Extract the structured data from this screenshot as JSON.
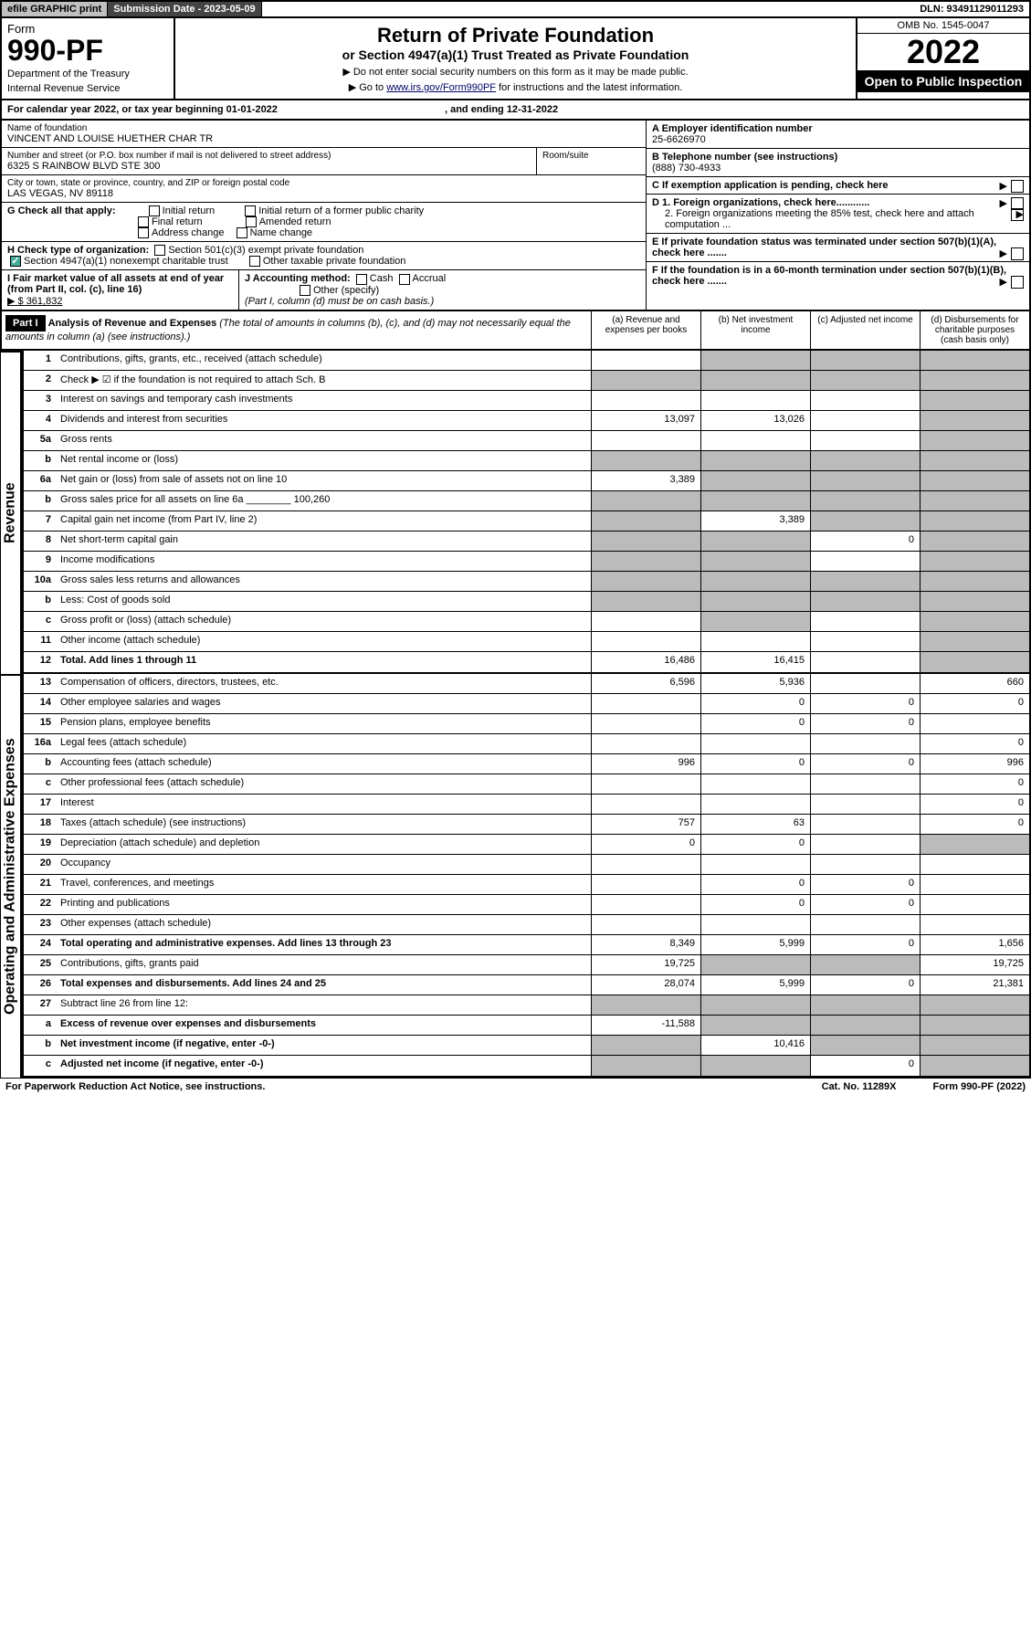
{
  "top": {
    "efile": "efile GRAPHIC print",
    "subdate_lbl": "Submission Date - 2023-05-09",
    "dln": "DLN: 93491129011293"
  },
  "hdr": {
    "form": "Form",
    "no": "990-PF",
    "dept": "Department of the Treasury",
    "irs": "Internal Revenue Service",
    "title": "Return of Private Foundation",
    "sub": "or Section 4947(a)(1) Trust Treated as Private Foundation",
    "note1": "▶ Do not enter social security numbers on this form as it may be made public.",
    "note2_a": "▶ Go to ",
    "note2_link": "www.irs.gov/Form990PF",
    "note2_b": " for instructions and the latest information.",
    "omb": "OMB No. 1545-0047",
    "year": "2022",
    "open": "Open to Public Inspection"
  },
  "cal": {
    "text_a": "For calendar year 2022, or tax year beginning 01-01-2022",
    "text_b": ", and ending 12-31-2022"
  },
  "info": {
    "name_lbl": "Name of foundation",
    "name": "VINCENT AND LOUISE HUETHER CHAR TR",
    "addr_lbl": "Number and street (or P.O. box number if mail is not delivered to street address)",
    "addr": "6325 S RAINBOW BLVD STE 300",
    "room_lbl": "Room/suite",
    "city_lbl": "City or town, state or province, country, and ZIP or foreign postal code",
    "city": "LAS VEGAS, NV  89118",
    "a_lbl": "A Employer identification number",
    "a_val": "25-6626970",
    "b_lbl": "B Telephone number (see instructions)",
    "b_val": "(888) 730-4933",
    "c_lbl": "C If exemption application is pending, check here",
    "g_lbl": "G Check all that apply:",
    "g_opts": [
      "Initial return",
      "Final return",
      "Address change",
      "Initial return of a former public charity",
      "Amended return",
      "Name change"
    ],
    "d1": "D 1. Foreign organizations, check here............",
    "d2": "2. Foreign organizations meeting the 85% test, check here and attach computation ...",
    "h_lbl": "H Check type of organization:",
    "h1": "Section 501(c)(3) exempt private foundation",
    "h2": "Section 4947(a)(1) nonexempt charitable trust",
    "h3": "Other taxable private foundation",
    "e_lbl": "E If private foundation status was terminated under section 507(b)(1)(A), check here .......",
    "i_lbl": "I Fair market value of all assets at end of year (from Part II, col. (c), line 16)",
    "i_val": "▶ $  361,832",
    "j_lbl": "J Accounting method:",
    "j_cash": "Cash",
    "j_acc": "Accrual",
    "j_other": "Other (specify)",
    "j_note": "(Part I, column (d) must be on cash basis.)",
    "f_lbl": "F If the foundation is in a 60-month termination under section 507(b)(1)(B), check here ......."
  },
  "part1": {
    "hdr": "Part I",
    "title": "Analysis of Revenue and Expenses",
    "note": "(The total of amounts in columns (b), (c), and (d) may not necessarily equal the amounts in column (a) (see instructions).)",
    "cols": [
      "(a)  Revenue and expenses per books",
      "(b)  Net investment income",
      "(c)  Adjusted net income",
      "(d)  Disbursements for charitable purposes (cash basis only)"
    ]
  },
  "side": {
    "rev": "Revenue",
    "exp": "Operating and Administrative Expenses"
  },
  "rows": [
    {
      "n": "1",
      "d": "Contributions, gifts, grants, etc., received (attach schedule)",
      "a": "",
      "b": "g",
      "c": "g",
      "dd": "g"
    },
    {
      "n": "2",
      "d": "Check ▶ ☑ if the foundation is not required to attach Sch. B",
      "a": "g",
      "b": "g",
      "c": "g",
      "dd": "g",
      "desc_bold_parts": true
    },
    {
      "n": "3",
      "d": "Interest on savings and temporary cash investments",
      "a": "",
      "b": "",
      "c": "",
      "dd": "g"
    },
    {
      "n": "4",
      "d": "Dividends and interest from securities",
      "a": "13,097",
      "b": "13,026",
      "c": "",
      "dd": "g"
    },
    {
      "n": "5a",
      "d": "Gross rents",
      "a": "",
      "b": "",
      "c": "",
      "dd": "g"
    },
    {
      "n": "b",
      "d": "Net rental income or (loss)",
      "a": "g",
      "b": "g",
      "c": "g",
      "dd": "g"
    },
    {
      "n": "6a",
      "d": "Net gain or (loss) from sale of assets not on line 10",
      "a": "3,389",
      "b": "g",
      "c": "g",
      "dd": "g"
    },
    {
      "n": "b",
      "d": "Gross sales price for all assets on line 6a ________ 100,260",
      "a": "g",
      "b": "g",
      "c": "g",
      "dd": "g"
    },
    {
      "n": "7",
      "d": "Capital gain net income (from Part IV, line 2)",
      "a": "g",
      "b": "3,389",
      "c": "g",
      "dd": "g"
    },
    {
      "n": "8",
      "d": "Net short-term capital gain",
      "a": "g",
      "b": "g",
      "c": "0",
      "dd": "g"
    },
    {
      "n": "9",
      "d": "Income modifications",
      "a": "g",
      "b": "g",
      "c": "",
      "dd": "g"
    },
    {
      "n": "10a",
      "d": "Gross sales less returns and allowances",
      "a": "g",
      "b": "g",
      "c": "g",
      "dd": "g"
    },
    {
      "n": "b",
      "d": "Less: Cost of goods sold",
      "a": "g",
      "b": "g",
      "c": "g",
      "dd": "g"
    },
    {
      "n": "c",
      "d": "Gross profit or (loss) (attach schedule)",
      "a": "",
      "b": "g",
      "c": "",
      "dd": "g"
    },
    {
      "n": "11",
      "d": "Other income (attach schedule)",
      "a": "",
      "b": "",
      "c": "",
      "dd": "g"
    },
    {
      "n": "12",
      "d": "Total. Add lines 1 through 11",
      "a": "16,486",
      "b": "16,415",
      "c": "",
      "dd": "g",
      "bold": true
    }
  ],
  "erows": [
    {
      "n": "13",
      "d": "Compensation of officers, directors, trustees, etc.",
      "a": "6,596",
      "b": "5,936",
      "c": "",
      "dd": "660"
    },
    {
      "n": "14",
      "d": "Other employee salaries and wages",
      "a": "",
      "b": "0",
      "c": "0",
      "dd": "0"
    },
    {
      "n": "15",
      "d": "Pension plans, employee benefits",
      "a": "",
      "b": "0",
      "c": "0",
      "dd": ""
    },
    {
      "n": "16a",
      "d": "Legal fees (attach schedule)",
      "a": "",
      "b": "",
      "c": "",
      "dd": "0"
    },
    {
      "n": "b",
      "d": "Accounting fees (attach schedule)",
      "a": "996",
      "b": "0",
      "c": "0",
      "dd": "996"
    },
    {
      "n": "c",
      "d": "Other professional fees (attach schedule)",
      "a": "",
      "b": "",
      "c": "",
      "dd": "0"
    },
    {
      "n": "17",
      "d": "Interest",
      "a": "",
      "b": "",
      "c": "",
      "dd": "0"
    },
    {
      "n": "18",
      "d": "Taxes (attach schedule) (see instructions)",
      "a": "757",
      "b": "63",
      "c": "",
      "dd": "0"
    },
    {
      "n": "19",
      "d": "Depreciation (attach schedule) and depletion",
      "a": "0",
      "b": "0",
      "c": "",
      "dd": "g"
    },
    {
      "n": "20",
      "d": "Occupancy",
      "a": "",
      "b": "",
      "c": "",
      "dd": ""
    },
    {
      "n": "21",
      "d": "Travel, conferences, and meetings",
      "a": "",
      "b": "0",
      "c": "0",
      "dd": ""
    },
    {
      "n": "22",
      "d": "Printing and publications",
      "a": "",
      "b": "0",
      "c": "0",
      "dd": ""
    },
    {
      "n": "23",
      "d": "Other expenses (attach schedule)",
      "a": "",
      "b": "",
      "c": "",
      "dd": ""
    },
    {
      "n": "24",
      "d": "Total operating and administrative expenses. Add lines 13 through 23",
      "a": "8,349",
      "b": "5,999",
      "c": "0",
      "dd": "1,656",
      "bold": true
    },
    {
      "n": "25",
      "d": "Contributions, gifts, grants paid",
      "a": "19,725",
      "b": "g",
      "c": "g",
      "dd": "19,725"
    },
    {
      "n": "26",
      "d": "Total expenses and disbursements. Add lines 24 and 25",
      "a": "28,074",
      "b": "5,999",
      "c": "0",
      "dd": "21,381",
      "bold": true
    },
    {
      "n": "27",
      "d": "Subtract line 26 from line 12:",
      "a": "g",
      "b": "g",
      "c": "g",
      "dd": "g"
    },
    {
      "n": "a",
      "d": "Excess of revenue over expenses and disbursements",
      "a": "-11,588",
      "b": "g",
      "c": "g",
      "dd": "g",
      "bold": true
    },
    {
      "n": "b",
      "d": "Net investment income (if negative, enter -0-)",
      "a": "g",
      "b": "10,416",
      "c": "g",
      "dd": "g",
      "bold": true
    },
    {
      "n": "c",
      "d": "Adjusted net income (if negative, enter -0-)",
      "a": "g",
      "b": "g",
      "c": "0",
      "dd": "g",
      "bold": true
    }
  ],
  "footer": {
    "l": "For Paperwork Reduction Act Notice, see instructions.",
    "m": "Cat. No. 11289X",
    "r": "Form 990-PF (2022)"
  },
  "colors": {
    "grey": "#bbbbbb",
    "black": "#000000"
  }
}
